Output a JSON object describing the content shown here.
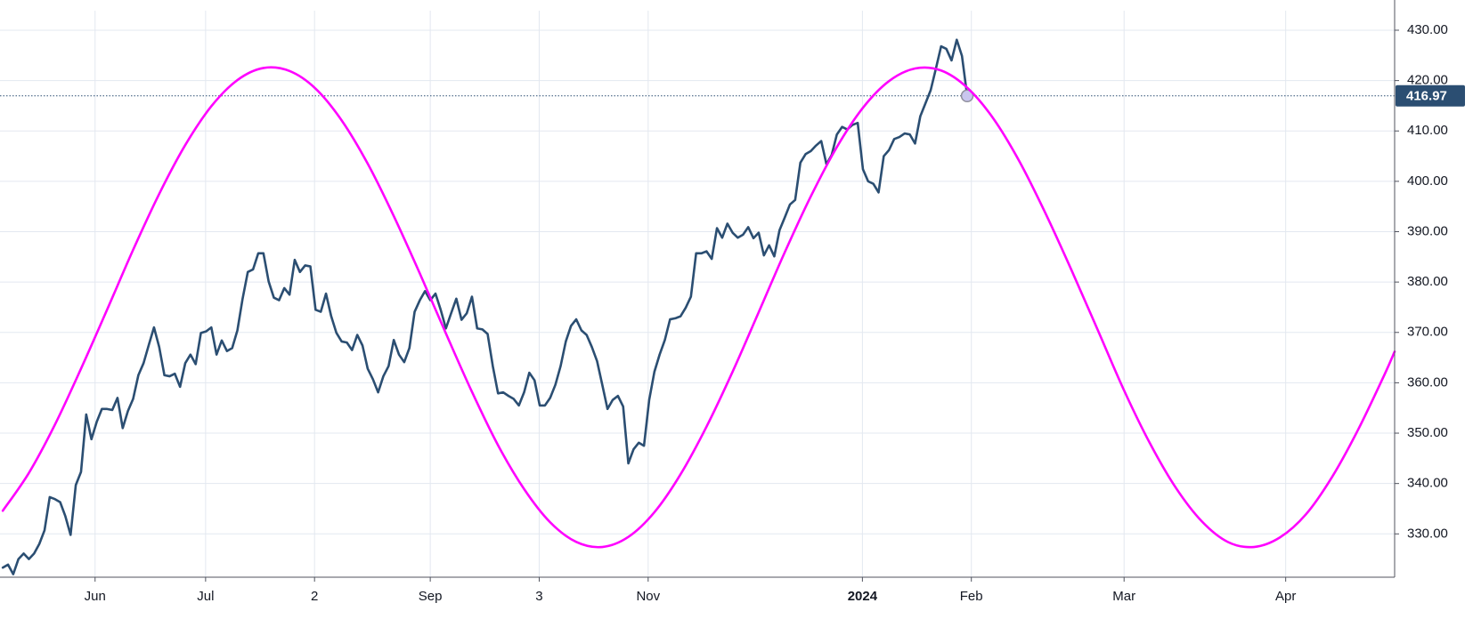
{
  "chart_data": {
    "type": "line",
    "xlim": [
      -0.54,
      267.0
    ],
    "ylim": [
      321.4,
      436.0
    ],
    "xticks": [
      {
        "value": 17.7,
        "label": "Jun"
      },
      {
        "value": 38.9,
        "label": "Jul"
      },
      {
        "value": 59.8,
        "label": "2"
      },
      {
        "value": 82.0,
        "label": "Sep"
      },
      {
        "value": 102.9,
        "label": "3"
      },
      {
        "value": 123.8,
        "label": "Nov"
      },
      {
        "value": 164.9,
        "label": "2024",
        "bold": true
      },
      {
        "value": 185.8,
        "label": "Feb"
      },
      {
        "value": 215.1,
        "label": "Mar"
      },
      {
        "value": 246.1,
        "label": "Apr"
      }
    ],
    "yticks": [
      {
        "value": 330,
        "label": "330.00"
      },
      {
        "value": 340,
        "label": "340.00"
      },
      {
        "value": 350,
        "label": "350.00"
      },
      {
        "value": 360,
        "label": "360.00"
      },
      {
        "value": 370,
        "label": "370.00"
      },
      {
        "value": 380,
        "label": "380.00"
      },
      {
        "value": 390,
        "label": "390.00"
      },
      {
        "value": 400,
        "label": "400.00"
      },
      {
        "value": 410,
        "label": "410.00"
      },
      {
        "value": 420,
        "label": "420.00"
      },
      {
        "value": 430,
        "label": "430.00"
      }
    ],
    "grid": true,
    "series": [
      {
        "color": "#2b4e72",
        "last_marker": true,
        "x": [
          0,
          1,
          2,
          3,
          4,
          5,
          6,
          7,
          8,
          9,
          10,
          11,
          12,
          13,
          14,
          15,
          16,
          17,
          18,
          19,
          20,
          21,
          22,
          23,
          24,
          25,
          26,
          27,
          28,
          29,
          30,
          31,
          32,
          33,
          34,
          35,
          36,
          37,
          38,
          39,
          40,
          41,
          42,
          43,
          44,
          45,
          46,
          47,
          48,
          49,
          50,
          51,
          52,
          53,
          54,
          55,
          56,
          57,
          58,
          59,
          60,
          61,
          62,
          63,
          64,
          65,
          66,
          67,
          68,
          69,
          70,
          71,
          72,
          73,
          74,
          75,
          76,
          77,
          78,
          79,
          80,
          81,
          82,
          83,
          84,
          85,
          86,
          87,
          88,
          89,
          90,
          91,
          92,
          93,
          94,
          95,
          96,
          97,
          98,
          99,
          100,
          101,
          102,
          103,
          104,
          105,
          106,
          107,
          108,
          109,
          110,
          111,
          112,
          113,
          114,
          115,
          116,
          117,
          118,
          119,
          120,
          121,
          122,
          123,
          124,
          125,
          126,
          127,
          128,
          129,
          130,
          131,
          132,
          133,
          134,
          135,
          136,
          137,
          138,
          139,
          140,
          141,
          142,
          143,
          144,
          145,
          146,
          147,
          148,
          149,
          150,
          151,
          152,
          153,
          154,
          155,
          156,
          157,
          158,
          159,
          160,
          161,
          162,
          163,
          164,
          165,
          166,
          167,
          168,
          169,
          170,
          171,
          172,
          173,
          174,
          175,
          176,
          177,
          178,
          179,
          180,
          181,
          182,
          183,
          184,
          185
        ],
        "values": [
          323.3,
          323.9,
          322.0,
          325.0,
          326.1,
          325.0,
          326.1,
          328.0,
          330.7,
          337.3,
          336.9,
          336.3,
          333.5,
          329.8,
          339.7,
          342.3,
          353.7,
          348.8,
          352.2,
          354.8,
          354.8,
          354.6,
          357.0,
          351.0,
          354.4,
          356.8,
          361.5,
          363.9,
          367.5,
          371.0,
          367.1,
          361.5,
          361.3,
          361.8,
          359.2,
          363.9,
          365.6,
          363.7,
          369.9,
          370.2,
          371.0,
          365.6,
          368.4,
          366.3,
          366.9,
          370.4,
          376.7,
          382.0,
          382.5,
          385.7,
          385.7,
          380.1,
          376.9,
          376.4,
          378.8,
          377.5,
          384.4,
          382.0,
          383.3,
          383.1,
          374.5,
          374.1,
          377.7,
          373.2,
          369.9,
          368.2,
          368.0,
          366.5,
          369.5,
          367.4,
          362.8,
          360.7,
          358.1,
          361.3,
          363.3,
          368.5,
          365.6,
          364.1,
          366.9,
          374.1,
          376.4,
          378.2,
          376.4,
          377.7,
          374.5,
          370.8,
          373.8,
          376.7,
          372.5,
          373.8,
          377.1,
          370.8,
          370.6,
          369.7,
          363.3,
          357.9,
          358.1,
          357.4,
          356.8,
          355.5,
          358.1,
          362.0,
          360.5,
          355.5,
          355.5,
          357.0,
          359.6,
          363.3,
          368.2,
          371.3,
          372.6,
          370.4,
          369.5,
          367.1,
          364.3,
          359.6,
          354.8,
          356.6,
          357.4,
          355.3,
          344.0,
          346.8,
          348.1,
          347.5,
          356.6,
          362.2,
          365.6,
          368.5,
          372.6,
          372.8,
          373.2,
          374.9,
          377.1,
          385.7,
          385.7,
          386.1,
          384.6,
          390.7,
          388.8,
          391.6,
          389.8,
          388.8,
          389.4,
          390.9,
          388.7,
          389.8,
          385.3,
          387.3,
          385.1,
          390.3,
          392.8,
          395.4,
          396.3,
          403.7,
          405.4,
          406.0,
          407.1,
          408.0,
          403.4,
          405.2,
          409.3,
          410.8,
          410.3,
          411.2,
          411.6,
          402.4,
          400.0,
          399.5,
          397.8,
          405.0,
          406.2,
          408.4,
          408.8,
          409.5,
          409.3,
          407.5,
          412.9,
          415.5,
          418.1,
          422.4,
          426.8,
          426.3,
          424.0,
          428.1,
          424.9,
          416.97
        ]
      },
      {
        "color": "#ff00ff",
        "smooth": true,
        "x": [
          0,
          5,
          10,
          15,
          20,
          25,
          30,
          35,
          40,
          45,
          50,
          55,
          60,
          65,
          70,
          75,
          80,
          85,
          90,
          95,
          100,
          105,
          110,
          115,
          120,
          125,
          130,
          135,
          140,
          145,
          150,
          155,
          160,
          165,
          170,
          175,
          180,
          185,
          190,
          195,
          200,
          205,
          210,
          215,
          220,
          225,
          230,
          235,
          240,
          245,
          250,
          255,
          260,
          265,
          267
        ],
        "values": [
          334.6,
          342.1,
          351.7,
          362.8,
          374.5,
          386.4,
          397.5,
          407.2,
          414.9,
          420.1,
          422.5,
          421.9,
          418.4,
          412.1,
          403.5,
          393.1,
          381.7,
          369.8,
          358.2,
          347.6,
          338.9,
          332.3,
          328.4,
          327.4,
          329.4,
          334.3,
          341.8,
          351.3,
          362.2,
          374.0,
          385.9,
          397.0,
          406.8,
          414.6,
          419.9,
          422.4,
          422.0,
          418.6,
          412.5,
          404.0,
          393.7,
          382.4,
          370.6,
          358.7,
          348.1,
          339.2,
          332.5,
          328.4,
          327.4,
          329.3,
          333.9,
          341.3,
          350.7,
          361.5,
          366.2
        ]
      }
    ]
  }
}
